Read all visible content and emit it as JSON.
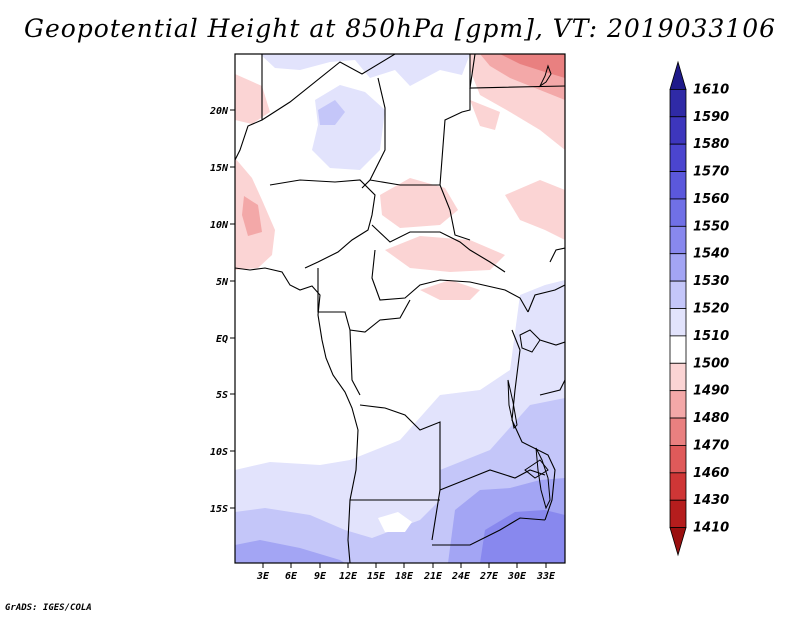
{
  "title": "Geopotential Height at 850hPa [gpm], VT: 2019033106",
  "credit": "GrADS: IGES/COLA",
  "map": {
    "lon_range": [
      0,
      35
    ],
    "lat_range": [
      -20,
      24.5
    ],
    "lat_ticks": [
      "20N",
      "15N",
      "10N",
      "5N",
      "EQ",
      "5S",
      "10S",
      "15S"
    ],
    "lon_ticks": [
      "3E",
      "6E",
      "9E",
      "12E",
      "15E",
      "18E",
      "21E",
      "24E",
      "27E",
      "30E",
      "33E"
    ]
  },
  "colorbar": {
    "levels": [
      "1610",
      "1590",
      "1580",
      "1570",
      "1560",
      "1550",
      "1540",
      "1530",
      "1520",
      "1510",
      "1500",
      "1490",
      "1480",
      "1470",
      "1460",
      "1430",
      "1410"
    ],
    "colors": [
      "#1f1a8a",
      "#2f2aa6",
      "#3d36bd",
      "#4b45cf",
      "#5b58dc",
      "#7070e6",
      "#8888ee",
      "#a3a5f4",
      "#c4c6f9",
      "#e2e3fc",
      "#ffffff",
      "#fbd4d4",
      "#f3a8a8",
      "#e98080",
      "#df5a5a",
      "#cf3636",
      "#b51d1d",
      "#9a1010"
    ]
  }
}
